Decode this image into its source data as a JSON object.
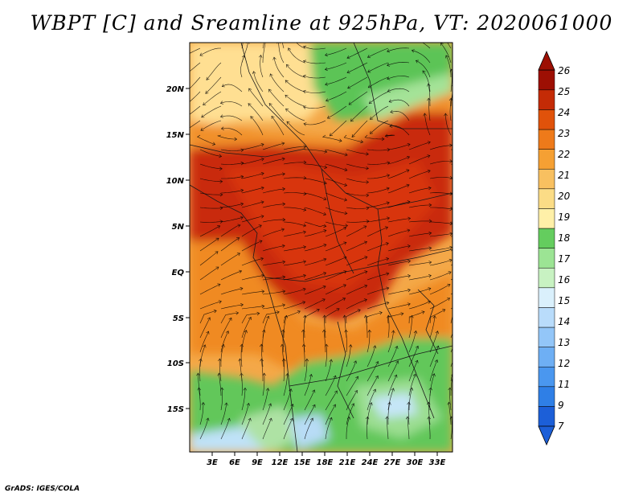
{
  "title": "WBPT [C] and Sreamline at 925hPa, VT: 2020061000",
  "footer": "GrADS: IGES/COLA",
  "map": {
    "lat_labels": [
      "20N",
      "15N",
      "10N",
      "5N",
      "EQ",
      "5S",
      "10S",
      "15S"
    ],
    "lon_labels": [
      "3E",
      "6E",
      "9E",
      "12E",
      "15E",
      "18E",
      "21E",
      "24E",
      "27E",
      "30E",
      "33E"
    ]
  },
  "colorbar": {
    "labels": [
      "7",
      "9",
      "11",
      "12",
      "13",
      "14",
      "15",
      "16",
      "17",
      "18",
      "19",
      "20",
      "21",
      "22",
      "23",
      "24",
      "25",
      "26"
    ],
    "colors": [
      "#1c5fd8",
      "#2f7fe6",
      "#4a97ef",
      "#6eaff4",
      "#93c6f8",
      "#b9dcfb",
      "#daf0fc",
      "#c8f2c2",
      "#9ce494",
      "#64cd5e",
      "#fff0a8",
      "#fbdc86",
      "#f8c060",
      "#f5a033",
      "#ee7a1a",
      "#e0520a",
      "#c42b06",
      "#9d0f03"
    ]
  },
  "legend_colors": {
    "red": "#c8260a",
    "orange": "#f08c28",
    "yellow": "#ffe89a",
    "green": "#60c85a",
    "lightblue": "#a8d6f6"
  }
}
